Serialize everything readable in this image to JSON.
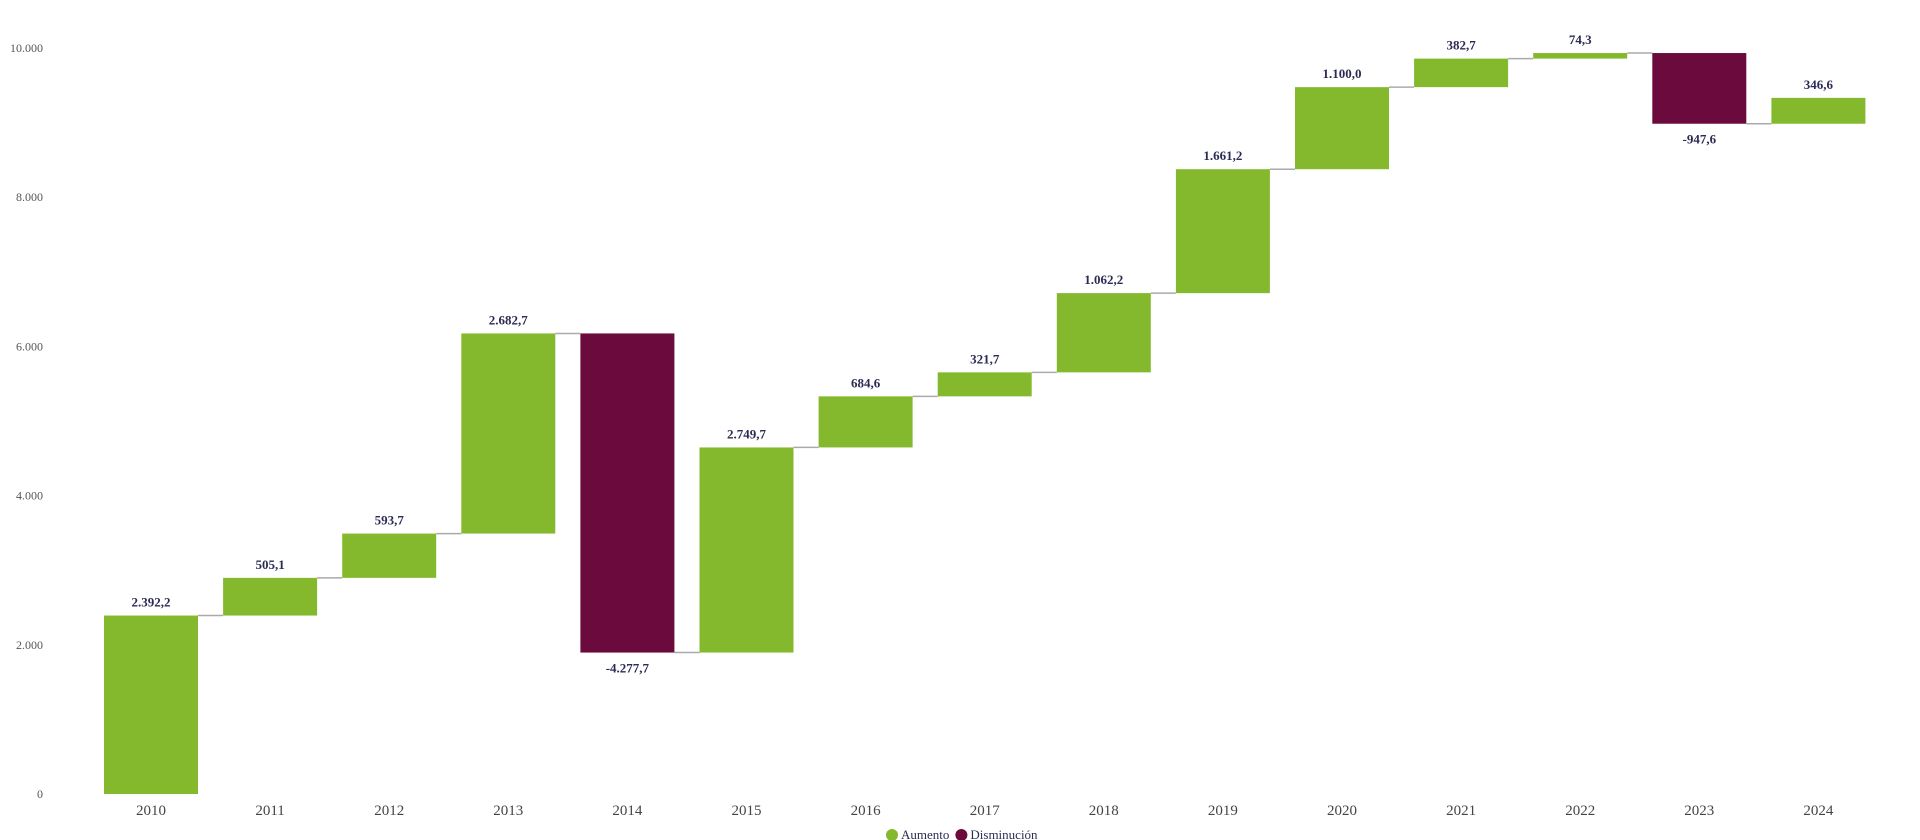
{
  "chart_data": {
    "type": "waterfall",
    "categories": [
      "2010",
      "2011",
      "2012",
      "2013",
      "2014",
      "2015",
      "2016",
      "2017",
      "2018",
      "2019",
      "2020",
      "2021",
      "2022",
      "2023",
      "2024"
    ],
    "values": [
      2392.2,
      505.1,
      593.7,
      2682.7,
      -4277.7,
      2749.7,
      684.6,
      321.7,
      1062.2,
      1661.2,
      1100.0,
      382.7,
      74.3,
      -947.6,
      346.6
    ],
    "labels": [
      "2.392,2",
      "505,1",
      "593,7",
      "2.682,7",
      "-4.277,7",
      "2.749,7",
      "684,6",
      "321,7",
      "1.062,2",
      "1.661,2",
      "1.100,0",
      "382,7",
      "74,3",
      "-947,6",
      "346,6"
    ],
    "yticks": [
      0,
      2000,
      4000,
      6000,
      8000,
      10000
    ],
    "ytick_labels": [
      "0",
      "2.000",
      "4.000",
      "6.000",
      "8.000",
      "10.000"
    ],
    "ylim": [
      0,
      10000
    ],
    "legend": [
      {
        "name": "Aumento",
        "color": "#84b92e"
      },
      {
        "name": "Disminución",
        "color": "#6a0a3d"
      }
    ],
    "legend_position": "bottom-center",
    "connector_color": "#aaaaaa",
    "grid": false
  }
}
